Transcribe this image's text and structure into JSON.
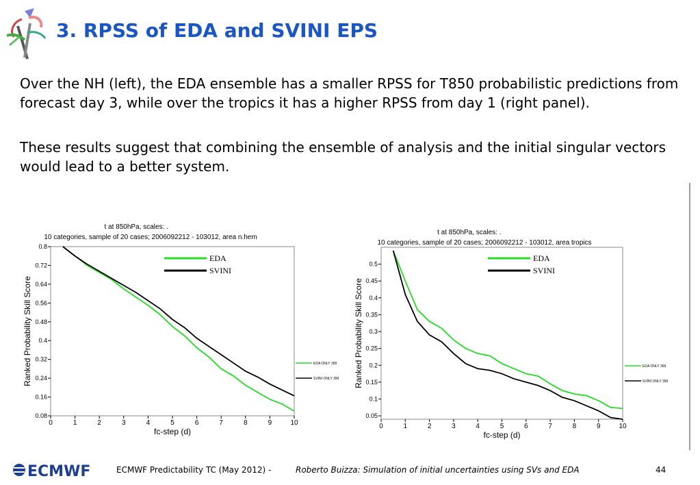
{
  "slide": {
    "title": "3. RPSS of EDA and SVINI EPS",
    "paragraph1": "Over the NH (left), the EDA ensemble has a smaller RPSS for T850 probabilistic predictions from forecast day 3, while over the tropics it has a higher RPSS from day 1 (right panel).",
    "paragraph2": "These results suggest that combining the ensemble of analysis and the initial singular vectors would lead to a better system."
  },
  "footer": {
    "logo_text": "ECMWF",
    "left_text": "ECMWF Predictability TC (May 2012) - ",
    "right_text": "Roberto Buizza: Simulation of initial uncertainties using SVs and EDA",
    "page_number": "44"
  },
  "colors": {
    "title": "#1a56c4",
    "eda": "#22dd22",
    "svini": "#000000",
    "logo": "#1c3f94"
  },
  "chart_data": [
    {
      "type": "line",
      "title": "t at 850hPa,   scales: .",
      "subtitle": "10 categories, sample of 20 cases; 2006092212 - 103012, area n.hem",
      "xlabel": "fc-step (d)",
      "ylabel": "Ranked Probability Skill Score",
      "xlim": [
        0,
        10
      ],
      "ylim": [
        0.08,
        0.8
      ],
      "xticks": [
        "0",
        "1",
        "2",
        "3",
        "4",
        "5",
        "6",
        "7",
        "8",
        "9",
        "10"
      ],
      "yticks": [
        "0.08",
        "0.16",
        "0.24",
        "0.32",
        "0.4",
        "0.48",
        "0.56",
        "0.64",
        "0.72",
        "0.8"
      ],
      "legend_top": [
        "EDA",
        "SVINI"
      ],
      "legend_side": [
        "EDA ONLY 399",
        "SVINI ONLY 399"
      ],
      "series": [
        {
          "name": "EDA",
          "color": "#22dd22",
          "x": [
            0.5,
            1,
            1.5,
            2,
            2.5,
            3,
            3.5,
            4,
            4.5,
            5,
            5.5,
            6,
            6.5,
            7,
            7.5,
            8,
            8.5,
            9,
            9.5,
            10
          ],
          "y": [
            0.8,
            0.76,
            0.72,
            0.69,
            0.66,
            0.62,
            0.585,
            0.55,
            0.51,
            0.46,
            0.42,
            0.37,
            0.33,
            0.28,
            0.25,
            0.21,
            0.18,
            0.15,
            0.13,
            0.1
          ]
        },
        {
          "name": "SVINI",
          "color": "#000000",
          "x": [
            0.5,
            1,
            1.5,
            2,
            2.5,
            3,
            3.5,
            4,
            4.5,
            5,
            5.5,
            6,
            6.5,
            7,
            7.5,
            8,
            8.5,
            9,
            9.5,
            10
          ],
          "y": [
            0.8,
            0.76,
            0.725,
            0.695,
            0.665,
            0.635,
            0.605,
            0.57,
            0.535,
            0.49,
            0.455,
            0.41,
            0.375,
            0.34,
            0.305,
            0.27,
            0.245,
            0.215,
            0.19,
            0.165
          ]
        }
      ]
    },
    {
      "type": "line",
      "title": "t at 850hPa,   scales: .",
      "subtitle": "10 categories, sample of 20 cases; 2006092212 - 103012, area tropics",
      "xlabel": "fc-step (d)",
      "ylabel": "Ranked Probability Skill Score",
      "xlim": [
        0,
        10
      ],
      "ylim": [
        0.04,
        0.55
      ],
      "xticks": [
        "0",
        "1",
        "2",
        "3",
        "4",
        "5",
        "6",
        "7",
        "8",
        "9",
        "10"
      ],
      "yticks": [
        "0.05",
        "0.1",
        "0.15",
        "0.2",
        "0.25",
        "0.3",
        "0.35",
        "0.4",
        "0.45",
        "0.5"
      ],
      "legend_top": [
        "EDA",
        "SVINI"
      ],
      "legend_side": [
        "EDA ONLY 399",
        "SVINI ONLY 399"
      ],
      "series": [
        {
          "name": "EDA",
          "color": "#22dd22",
          "x": [
            0.5,
            1,
            1.5,
            2,
            2.5,
            3,
            3.5,
            4,
            4.5,
            5,
            5.5,
            6,
            6.5,
            7,
            7.5,
            8,
            8.5,
            9,
            9.5,
            10
          ],
          "y": [
            0.54,
            0.45,
            0.365,
            0.33,
            0.31,
            0.275,
            0.25,
            0.235,
            0.228,
            0.205,
            0.19,
            0.175,
            0.168,
            0.145,
            0.125,
            0.115,
            0.11,
            0.095,
            0.075,
            0.072
          ]
        },
        {
          "name": "SVINI",
          "color": "#000000",
          "x": [
            0.5,
            1,
            1.5,
            2,
            2.5,
            3,
            3.5,
            4,
            4.5,
            5,
            5.5,
            6,
            6.5,
            7,
            7.5,
            8,
            8.5,
            9,
            9.5,
            10
          ],
          "y": [
            0.54,
            0.41,
            0.33,
            0.29,
            0.27,
            0.235,
            0.205,
            0.19,
            0.185,
            0.175,
            0.16,
            0.15,
            0.14,
            0.125,
            0.105,
            0.095,
            0.08,
            0.065,
            0.045,
            0.04
          ]
        }
      ]
    }
  ]
}
